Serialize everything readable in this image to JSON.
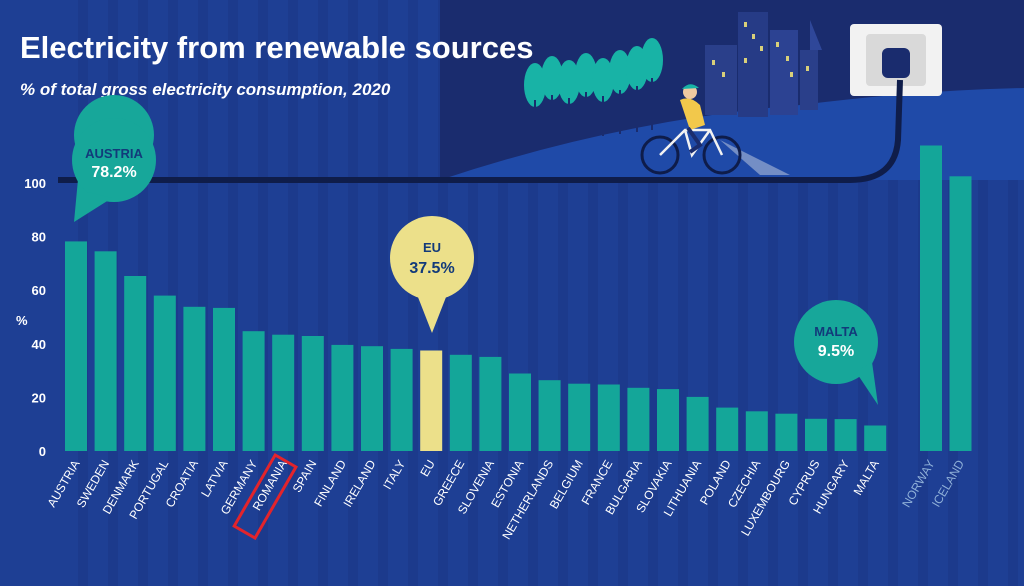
{
  "title": "Electricity from renewable sources",
  "subtitle": "% of total gross electricity consumption, 2020",
  "colors": {
    "background": "#1e3f94",
    "bar": "#14a699",
    "highlight_bar": "#ece08a",
    "callout_teal": "#17a79a",
    "callout_yellow": "#ece08a",
    "callout_text_dark": "#123a7a",
    "highlight_box": "#e3242b"
  },
  "callouts": {
    "austria": {
      "name": "AUSTRIA",
      "value": "78.2%"
    },
    "eu": {
      "name": "EU",
      "value": "37.5%"
    },
    "malta": {
      "name": "MALTA",
      "value": "9.5%"
    }
  },
  "chart_data": {
    "type": "bar",
    "title": "Electricity from renewable sources",
    "subtitle": "% of total gross electricity consumption, 2020",
    "ylabel": "%",
    "xlabel": "",
    "ylim": [
      0,
      115
    ],
    "yticks": [
      0,
      20,
      40,
      60,
      80,
      100
    ],
    "grid": false,
    "categories": [
      "AUSTRIA",
      "SWEDEN",
      "DENMARK",
      "PORTUGAL",
      "CROATIA",
      "LATVIA",
      "GERMANY",
      "ROMANIA",
      "SPAIN",
      "FINLAND",
      "IRELAND",
      "ITALY",
      "EU",
      "GREECE",
      "SLOVENIA",
      "ESTONIA",
      "NETHERLANDS",
      "BELGIUM",
      "FRANCE",
      "BULGARIA",
      "SLOVAKIA",
      "LITHUANIA",
      "POLAND",
      "CZECHIA",
      "LUXEMBOURG",
      "CYPRUS",
      "HUNGARY",
      "MALTA",
      "NORWAY",
      "ICELAND"
    ],
    "values": [
      78.2,
      74.5,
      65.3,
      58.0,
      53.8,
      53.4,
      44.7,
      43.4,
      42.9,
      39.6,
      39.1,
      38.1,
      37.5,
      35.9,
      35.1,
      28.9,
      26.4,
      25.1,
      24.8,
      23.6,
      23.1,
      20.2,
      16.2,
      14.8,
      13.9,
      12.0,
      11.9,
      9.5,
      114.0,
      102.5
    ],
    "highlighted": [
      "EU"
    ],
    "boxed": [
      "ROMANIA"
    ],
    "non_eu": [
      "NORWAY",
      "ICELAND"
    ]
  }
}
